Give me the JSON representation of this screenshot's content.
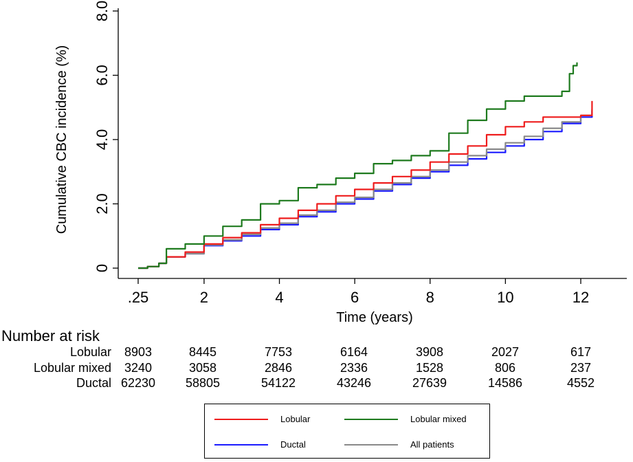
{
  "chart_data": {
    "type": "line",
    "title": "",
    "xlabel": "Time (years)",
    "ylabel": "Cumulative CBC incidence (%)",
    "xlim": [
      0.25,
      12.5
    ],
    "ylim": [
      0,
      8.0
    ],
    "x_ticks": [
      0.25,
      2,
      4,
      6,
      8,
      10,
      12
    ],
    "x_tick_labels": [
      ".25",
      "2",
      "4",
      "6",
      "8",
      "10",
      "12"
    ],
    "y_ticks": [
      0,
      2,
      4,
      6,
      8
    ],
    "y_tick_labels": [
      "0",
      "2.0",
      "4.0",
      "6.0",
      "8.0"
    ],
    "series": [
      {
        "name": "Ductal",
        "color": "#1a1aff",
        "points": [
          [
            0.25,
            0
          ],
          [
            0.5,
            0.05
          ],
          [
            0.8,
            0.15
          ],
          [
            1,
            0.35
          ],
          [
            1.5,
            0.45
          ],
          [
            2,
            0.7
          ],
          [
            2.5,
            0.85
          ],
          [
            3,
            1.0
          ],
          [
            3.5,
            1.2
          ],
          [
            4,
            1.35
          ],
          [
            4.5,
            1.6
          ],
          [
            5,
            1.75
          ],
          [
            5.5,
            2.0
          ],
          [
            6,
            2.15
          ],
          [
            6.5,
            2.4
          ],
          [
            7,
            2.6
          ],
          [
            7.5,
            2.8
          ],
          [
            8,
            3.0
          ],
          [
            8.5,
            3.2
          ],
          [
            9,
            3.4
          ],
          [
            9.5,
            3.6
          ],
          [
            10,
            3.8
          ],
          [
            10.5,
            4.0
          ],
          [
            11,
            4.25
          ],
          [
            11.5,
            4.5
          ],
          [
            12,
            4.7
          ],
          [
            12.3,
            4.9
          ]
        ]
      },
      {
        "name": "All patients",
        "color": "#888888",
        "points": [
          [
            0.25,
            0
          ],
          [
            0.5,
            0.05
          ],
          [
            0.8,
            0.15
          ],
          [
            1,
            0.35
          ],
          [
            1.5,
            0.45
          ],
          [
            2,
            0.72
          ],
          [
            2.5,
            0.88
          ],
          [
            3,
            1.05
          ],
          [
            3.5,
            1.25
          ],
          [
            4,
            1.4
          ],
          [
            4.5,
            1.65
          ],
          [
            5,
            1.8
          ],
          [
            5.5,
            2.05
          ],
          [
            6,
            2.2
          ],
          [
            6.5,
            2.45
          ],
          [
            7,
            2.65
          ],
          [
            7.5,
            2.85
          ],
          [
            8,
            3.05
          ],
          [
            8.5,
            3.3
          ],
          [
            9,
            3.5
          ],
          [
            9.5,
            3.7
          ],
          [
            10,
            3.9
          ],
          [
            10.5,
            4.1
          ],
          [
            11,
            4.35
          ],
          [
            11.5,
            4.55
          ],
          [
            12,
            4.75
          ],
          [
            12.3,
            4.95
          ]
        ]
      },
      {
        "name": "Lobular",
        "color": "#ee1c1c",
        "points": [
          [
            0.25,
            0
          ],
          [
            0.5,
            0.05
          ],
          [
            0.8,
            0.15
          ],
          [
            1,
            0.35
          ],
          [
            1.5,
            0.5
          ],
          [
            2,
            0.75
          ],
          [
            2.5,
            0.95
          ],
          [
            3,
            1.1
          ],
          [
            3.5,
            1.35
          ],
          [
            4,
            1.55
          ],
          [
            4.5,
            1.8
          ],
          [
            5,
            2.0
          ],
          [
            5.5,
            2.25
          ],
          [
            6,
            2.45
          ],
          [
            6.5,
            2.65
          ],
          [
            7,
            2.85
          ],
          [
            7.5,
            3.05
          ],
          [
            8,
            3.3
          ],
          [
            8.5,
            3.55
          ],
          [
            9,
            3.8
          ],
          [
            9.5,
            4.15
          ],
          [
            10,
            4.4
          ],
          [
            10.5,
            4.55
          ],
          [
            11,
            4.7
          ],
          [
            11.5,
            4.7
          ],
          [
            12,
            4.75
          ],
          [
            12.3,
            5.2
          ]
        ]
      },
      {
        "name": "Lobular mixed",
        "color": "#1e7a1e",
        "points": [
          [
            0.25,
            0
          ],
          [
            0.5,
            0.05
          ],
          [
            0.8,
            0.15
          ],
          [
            1,
            0.6
          ],
          [
            1.5,
            0.75
          ],
          [
            2,
            1.0
          ],
          [
            2.5,
            1.3
          ],
          [
            3,
            1.5
          ],
          [
            3.5,
            2.0
          ],
          [
            4,
            2.1
          ],
          [
            4.5,
            2.5
          ],
          [
            5,
            2.6
          ],
          [
            5.5,
            2.8
          ],
          [
            6,
            2.95
          ],
          [
            6.5,
            3.25
          ],
          [
            7,
            3.35
          ],
          [
            7.5,
            3.5
          ],
          [
            8,
            3.65
          ],
          [
            8.5,
            4.2
          ],
          [
            9,
            4.6
          ],
          [
            9.5,
            4.95
          ],
          [
            10,
            5.2
          ],
          [
            10.5,
            5.35
          ],
          [
            11,
            5.35
          ],
          [
            11.5,
            5.5
          ],
          [
            11.7,
            6.05
          ],
          [
            11.8,
            6.3
          ],
          [
            11.9,
            6.4
          ]
        ]
      }
    ]
  },
  "risk_table": {
    "title": "Number at risk",
    "rows": [
      {
        "label": "Lobular",
        "values": [
          "8903",
          "8445",
          "7753",
          "6164",
          "3908",
          "2027",
          "617"
        ]
      },
      {
        "label": "Lobular mixed",
        "values": [
          "3240",
          "3058",
          "2846",
          "2336",
          "1528",
          "806",
          "237"
        ]
      },
      {
        "label": "Ductal",
        "values": [
          "62230",
          "58805",
          "54122",
          "43246",
          "27639",
          "14586",
          "4552"
        ]
      }
    ]
  },
  "legend": {
    "items": [
      {
        "label": "Lobular",
        "color": "#ee1c1c"
      },
      {
        "label": "Lobular mixed",
        "color": "#1e7a1e"
      },
      {
        "label": "Ductal",
        "color": "#1a1aff"
      },
      {
        "label": "All patients",
        "color": "#888888"
      }
    ]
  }
}
